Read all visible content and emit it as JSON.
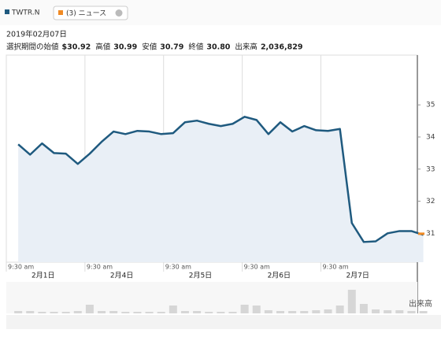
{
  "legend": {
    "symbol": "TWTR.N",
    "news": "(3) ニュース"
  },
  "header": {
    "date": "2019年02月07日",
    "fields": [
      {
        "label": "選択期間の始値",
        "value": "$30.92"
      },
      {
        "label": "高値",
        "value": "30.99"
      },
      {
        "label": "安値",
        "value": "30.79"
      },
      {
        "label": "終値",
        "value": "30.80"
      },
      {
        "label": "出来高",
        "value": "2,036,829"
      }
    ]
  },
  "chart_data": {
    "type": "line",
    "color": "#1f5a7f",
    "fill": "#e9eff6",
    "values": [
      33.77,
      33.45,
      33.8,
      33.5,
      33.48,
      33.16,
      33.48,
      33.85,
      34.17,
      34.09,
      34.19,
      34.17,
      34.09,
      34.12,
      34.46,
      34.51,
      34.41,
      34.34,
      34.41,
      34.63,
      34.53,
      34.09,
      34.46,
      34.17,
      34.34,
      34.21,
      34.19,
      34.25,
      31.32,
      30.73,
      30.75,
      31.0,
      31.07,
      31.07,
      30.95
    ],
    "xlim": [
      -1,
      33.5
    ],
    "ylim": [
      30.1,
      36.55
    ],
    "yticks": [
      31,
      32,
      33,
      34,
      35
    ],
    "xticks": [
      {
        "value": -1,
        "label": "9:30 am"
      },
      {
        "value": 5.6,
        "label": "9:30 am"
      },
      {
        "value": 12.2,
        "label": "9:30 am"
      },
      {
        "value": 18.8,
        "label": "9:30 am"
      },
      {
        "value": 25.4,
        "label": "9:30 am"
      }
    ],
    "xtick_dates": [
      "2月1日",
      "2月4日",
      "2月5日",
      "2月6日",
      "2月7日"
    ],
    "volume": {
      "label": "出来高",
      "color": "#d6d6d6",
      "ylim": [
        0,
        40
      ],
      "values": [
        3,
        3,
        2,
        2,
        2,
        3,
        11,
        3,
        3,
        2,
        2,
        2,
        2,
        10,
        3,
        3,
        2,
        2,
        2,
        11,
        10,
        4,
        3,
        3,
        3,
        4,
        5,
        10,
        30,
        12,
        5,
        4,
        4,
        3,
        3
      ]
    }
  }
}
